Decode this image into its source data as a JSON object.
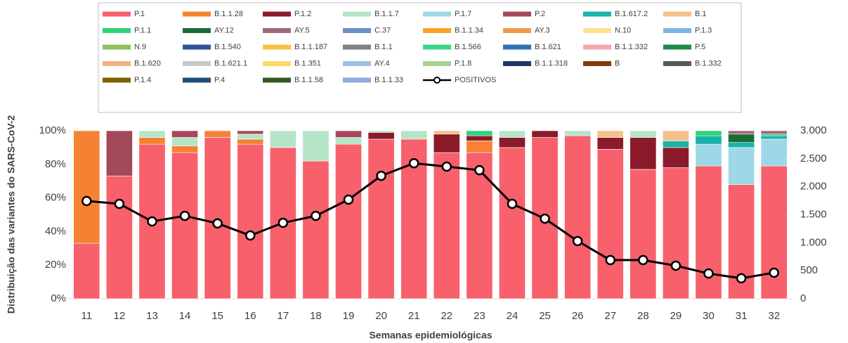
{
  "chart_data": {
    "type": "bar",
    "stacked": true,
    "xlabel": "Semanas epidemiológicas",
    "ylabel": "Distribuição das variantes do SARS-CoV-2",
    "categories": [
      "11",
      "12",
      "13",
      "14",
      "15",
      "16",
      "17",
      "18",
      "19",
      "20",
      "21",
      "22",
      "23",
      "24",
      "25",
      "26",
      "27",
      "28",
      "29",
      "30",
      "31",
      "32"
    ],
    "ylim": [
      0,
      100
    ],
    "yticks": [
      {
        "value": 0,
        "label": "0%"
      },
      {
        "value": 20,
        "label": "20%"
      },
      {
        "value": 40,
        "label": "40%"
      },
      {
        "value": 60,
        "label": "60%"
      },
      {
        "value": 80,
        "label": "80%"
      },
      {
        "value": 100,
        "label": "100%"
      }
    ],
    "y2lim": [
      0,
      3000
    ],
    "y2ticks": [
      0,
      500,
      {
        "value": 1000,
        "label": "1.000"
      },
      {
        "value": 1500,
        "label": "1.500"
      },
      {
        "value": 2000,
        "label": "2.000"
      },
      {
        "value": 2500,
        "label": "2.500"
      },
      {
        "value": 3000,
        "label": "3.000"
      }
    ],
    "series": [
      {
        "name": "P.1",
        "color": "#f8606c",
        "values": [
          33,
          73,
          92,
          87,
          96,
          92,
          90,
          82,
          92,
          95,
          95,
          87,
          87,
          90,
          96,
          97,
          89,
          77,
          78,
          79,
          68,
          79
        ]
      },
      {
        "name": "B.1.1.28",
        "color": "#f58232",
        "values": [
          67,
          0,
          4,
          4,
          4,
          3,
          0,
          0,
          0,
          0,
          0,
          0,
          7,
          0,
          0,
          0,
          0,
          0,
          0,
          0,
          0,
          0
        ]
      },
      {
        "name": "P.1.2",
        "color": "#8b1a2b",
        "values": [
          0,
          0,
          0,
          0,
          0,
          0,
          0,
          0,
          0,
          4,
          0,
          11,
          3,
          6,
          4,
          0,
          7,
          19,
          12,
          0,
          0,
          0
        ]
      },
      {
        "name": "B.1.1.7",
        "color": "#b5e5c6",
        "values": [
          0,
          0,
          4,
          5,
          0,
          3,
          10,
          18,
          4,
          1,
          5,
          0,
          0,
          4,
          0,
          3,
          0,
          4,
          0,
          0,
          0,
          0
        ]
      },
      {
        "name": "P.1.7",
        "color": "#9ed8e6",
        "values": [
          0,
          0,
          0,
          0,
          0,
          0,
          0,
          0,
          0,
          0,
          0,
          0,
          0,
          0,
          0,
          0,
          0,
          0,
          0,
          13,
          22,
          16
        ]
      },
      {
        "name": "P.2",
        "color": "#a34a5a",
        "values": [
          0,
          27,
          0,
          4,
          0,
          2,
          0,
          0,
          4,
          0,
          0,
          0,
          0,
          0,
          0,
          0,
          0,
          0,
          0,
          0,
          0,
          0
        ]
      },
      {
        "name": "B.1.617.2",
        "color": "#1ab3aa",
        "values": [
          0,
          0,
          0,
          0,
          0,
          0,
          0,
          0,
          0,
          0,
          0,
          0,
          0,
          0,
          0,
          0,
          0,
          0,
          4,
          5,
          3,
          2
        ]
      },
      {
        "name": "B.1",
        "color": "#f5c08a",
        "values": [
          0,
          0,
          0,
          0,
          0,
          0,
          0,
          0,
          0,
          0,
          0,
          2,
          0,
          0,
          0,
          0,
          4,
          0,
          6,
          0,
          0,
          0
        ]
      },
      {
        "name": "P.1.1",
        "color": "#2ed47a",
        "values": [
          0,
          0,
          0,
          0,
          0,
          0,
          0,
          0,
          0,
          0,
          0,
          0,
          3,
          0,
          0,
          0,
          0,
          0,
          0,
          3,
          0,
          1
        ]
      },
      {
        "name": "AY.12",
        "color": "#1a6b3a",
        "values": [
          0,
          0,
          0,
          0,
          0,
          0,
          0,
          0,
          0,
          0,
          0,
          0,
          0,
          0,
          0,
          0,
          0,
          0,
          0,
          0,
          5,
          0
        ]
      },
      {
        "name": "AY.5",
        "color": "#a0697a",
        "values": [
          0,
          0,
          0,
          0,
          0,
          0,
          0,
          0,
          0,
          0,
          0,
          0,
          0,
          0,
          0,
          0,
          0,
          0,
          0,
          0,
          2,
          2
        ]
      },
      {
        "name": "C.37",
        "color": "#6b8fc8",
        "values": [
          0,
          0,
          0,
          0,
          0,
          0,
          0,
          0,
          0,
          0,
          0,
          0,
          0,
          0,
          0,
          0,
          0,
          0,
          0,
          0,
          0,
          0
        ]
      },
      {
        "name": "B.1.1.34",
        "color": "#f6a623",
        "values": [
          0,
          0,
          0,
          0,
          0,
          0,
          0,
          0,
          0,
          0,
          0,
          0,
          0,
          0,
          0,
          0,
          0,
          0,
          0,
          0,
          0,
          0
        ]
      },
      {
        "name": "AY.3",
        "color": "#f09a4a",
        "values": [
          0,
          0,
          0,
          0,
          0,
          0,
          0,
          0,
          0,
          0,
          0,
          0,
          0,
          0,
          0,
          0,
          0,
          0,
          0,
          0,
          0,
          0
        ]
      },
      {
        "name": "N.10",
        "color": "#fde28a",
        "values": [
          0,
          0,
          0,
          0,
          0,
          0,
          0,
          0,
          0,
          0,
          0,
          0,
          0,
          0,
          0,
          0,
          0,
          0,
          0,
          0,
          0,
          0
        ]
      },
      {
        "name": "P.1.3",
        "color": "#7fb3e0",
        "values": [
          0,
          0,
          0,
          0,
          0,
          0,
          0,
          0,
          0,
          0,
          0,
          0,
          0,
          0,
          0,
          0,
          0,
          0,
          0,
          0,
          0,
          0
        ]
      },
      {
        "name": "N.9",
        "color": "#8fbf5f",
        "values": [
          0,
          0,
          0,
          0,
          0,
          0,
          0,
          0,
          0,
          0,
          0,
          0,
          0,
          0,
          0,
          0,
          0,
          0,
          0,
          0,
          0,
          0
        ]
      },
      {
        "name": "B.1.540",
        "color": "#2f5597",
        "values": [
          0,
          0,
          0,
          0,
          0,
          0,
          0,
          0,
          0,
          0,
          0,
          0,
          0,
          0,
          0,
          0,
          0,
          0,
          0,
          0,
          0,
          0
        ]
      },
      {
        "name": "B.1.1.187",
        "color": "#f6c343",
        "values": [
          0,
          0,
          0,
          0,
          0,
          0,
          0,
          0,
          0,
          0,
          0,
          0,
          0,
          0,
          0,
          0,
          0,
          0,
          0,
          0,
          0,
          0
        ]
      },
      {
        "name": "B.1.1",
        "color": "#808080",
        "values": [
          0,
          0,
          0,
          0,
          0,
          0,
          0,
          0,
          0,
          0,
          0,
          0,
          0,
          0,
          0,
          0,
          0,
          0,
          0,
          0,
          0,
          0
        ]
      },
      {
        "name": "B.1.566",
        "color": "#3bd68a",
        "values": [
          0,
          0,
          0,
          0,
          0,
          0,
          0,
          0,
          0,
          0,
          0,
          0,
          0,
          0,
          0,
          0,
          0,
          0,
          0,
          0,
          0,
          0
        ]
      },
      {
        "name": "B.1.621",
        "color": "#2e75b6",
        "values": [
          0,
          0,
          0,
          0,
          0,
          0,
          0,
          0,
          0,
          0,
          0,
          0,
          0,
          0,
          0,
          0,
          0,
          0,
          0,
          0,
          0,
          0
        ]
      },
      {
        "name": "B.1.1.332",
        "color": "#f4a7b0",
        "values": [
          0,
          0,
          0,
          0,
          0,
          0,
          0,
          0,
          0,
          0,
          0,
          0,
          0,
          0,
          0,
          0,
          0,
          0,
          0,
          0,
          0,
          0
        ]
      },
      {
        "name": "P.5",
        "color": "#1f8a4a",
        "values": [
          0,
          0,
          0,
          0,
          0,
          0,
          0,
          0,
          0,
          0,
          0,
          0,
          0,
          0,
          0,
          0,
          0,
          0,
          0,
          0,
          0,
          0
        ]
      },
      {
        "name": "B.1.620",
        "color": "#f4b183",
        "values": [
          0,
          0,
          0,
          0,
          0,
          0,
          0,
          0,
          0,
          0,
          0,
          0,
          0,
          0,
          0,
          0,
          0,
          0,
          0,
          0,
          0,
          0
        ]
      },
      {
        "name": "B.1.621.1",
        "color": "#c9c9c9",
        "values": [
          0,
          0,
          0,
          0,
          0,
          0,
          0,
          0,
          0,
          0,
          0,
          0,
          0,
          0,
          0,
          0,
          0,
          0,
          0,
          0,
          0,
          0
        ]
      },
      {
        "name": "B.1.351",
        "color": "#ffd966",
        "values": [
          0,
          0,
          0,
          0,
          0,
          0,
          0,
          0,
          0,
          0,
          0,
          0,
          0,
          0,
          0,
          0,
          0,
          0,
          0,
          0,
          0,
          0
        ]
      },
      {
        "name": "AY.4",
        "color": "#9dc3e6",
        "values": [
          0,
          0,
          0,
          0,
          0,
          0,
          0,
          0,
          0,
          0,
          0,
          0,
          0,
          0,
          0,
          0,
          0,
          0,
          0,
          0,
          0,
          0
        ]
      },
      {
        "name": "P.1.8",
        "color": "#a9d18e",
        "values": [
          0,
          0,
          0,
          0,
          0,
          0,
          0,
          0,
          0,
          0,
          0,
          0,
          0,
          0,
          0,
          0,
          0,
          0,
          0,
          0,
          0,
          0
        ]
      },
      {
        "name": "B.1.1.318",
        "color": "#1f3864",
        "values": [
          0,
          0,
          0,
          0,
          0,
          0,
          0,
          0,
          0,
          0,
          0,
          0,
          0,
          0,
          0,
          0,
          0,
          0,
          0,
          0,
          0,
          0
        ]
      },
      {
        "name": "B",
        "color": "#843c0c",
        "values": [
          0,
          0,
          0,
          0,
          0,
          0,
          0,
          0,
          0,
          0,
          0,
          0,
          0,
          0,
          0,
          0,
          0,
          0,
          0,
          0,
          0,
          0
        ]
      },
      {
        "name": "B.1.332",
        "color": "#595959",
        "values": [
          0,
          0,
          0,
          0,
          0,
          0,
          0,
          0,
          0,
          0,
          0,
          0,
          0,
          0,
          0,
          0,
          0,
          0,
          0,
          0,
          0,
          0
        ]
      },
      {
        "name": "P.1.4",
        "color": "#7f6000",
        "values": [
          0,
          0,
          0,
          0,
          0,
          0,
          0,
          0,
          0,
          0,
          0,
          0,
          0,
          0,
          0,
          0,
          0,
          0,
          0,
          0,
          0,
          0
        ]
      },
      {
        "name": "P.4",
        "color": "#1f4e79",
        "values": [
          0,
          0,
          0,
          0,
          0,
          0,
          0,
          0,
          0,
          0,
          0,
          0,
          0,
          0,
          0,
          0,
          0,
          0,
          0,
          0,
          0,
          0
        ]
      },
      {
        "name": "B.1.1.58",
        "color": "#375623",
        "values": [
          0,
          0,
          0,
          0,
          0,
          0,
          0,
          0,
          0,
          0,
          0,
          0,
          0,
          0,
          0,
          0,
          0,
          0,
          0,
          0,
          0,
          0
        ]
      },
      {
        "name": "B.1.1.33",
        "color": "#8faadc",
        "values": [
          0,
          0,
          0,
          0,
          0,
          0,
          0,
          0,
          0,
          0,
          0,
          0,
          0,
          0,
          0,
          0,
          0,
          0,
          0,
          0,
          0,
          0
        ]
      },
      {
        "name": "POSITIVOS",
        "color": "#000000",
        "type": "line",
        "axis": "y2",
        "values": [
          1745,
          1695,
          1380,
          1480,
          1345,
          1130,
          1355,
          1480,
          1770,
          2195,
          2420,
          2360,
          2295,
          1695,
          1430,
          1030,
          690,
          690,
          590,
          450,
          365,
          465
        ]
      }
    ]
  }
}
